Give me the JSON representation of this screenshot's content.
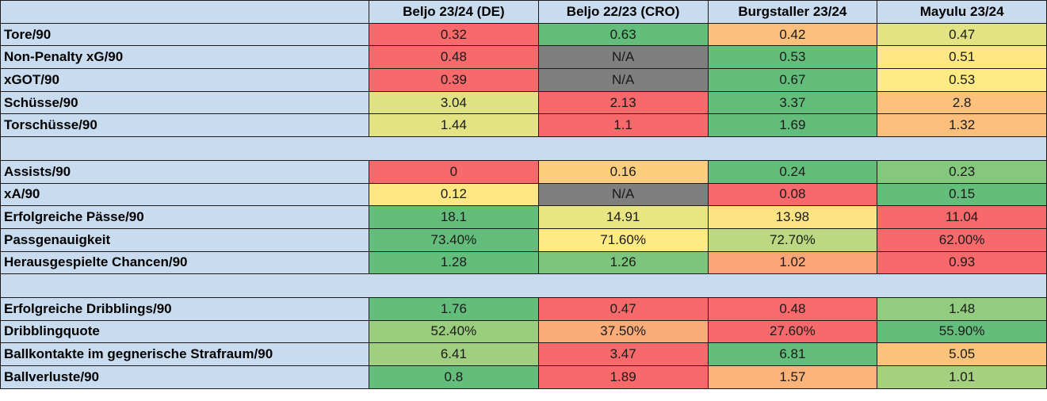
{
  "colors": {
    "header_bg": "#c9dcef",
    "red": "#f8696b",
    "orange": "#fbaa77",
    "yellow": "#ffeb84",
    "yellow_green": "#dfe283",
    "light_green": "#a2d07f",
    "green": "#63be7b",
    "gray": "#7f7f7f"
  },
  "table": {
    "columns": [
      "Beljo 23/24 (DE)",
      "Beljo 22/23 (CRO)",
      "Burgstaller 23/24",
      "Mayulu 23/24"
    ],
    "rows": [
      {
        "label": "Tore/90",
        "cells": [
          {
            "v": "0.32",
            "c": "#f8696b"
          },
          {
            "v": "0.63",
            "c": "#63be7b"
          },
          {
            "v": "0.42",
            "c": "#fbbf7c"
          },
          {
            "v": "0.47",
            "c": "#e2e383"
          }
        ]
      },
      {
        "label": "Non-Penalty xG/90",
        "cells": [
          {
            "v": "0.48",
            "c": "#f8696b"
          },
          {
            "v": "N/A",
            "c": "#7f7f7f"
          },
          {
            "v": "0.53",
            "c": "#63be7b"
          },
          {
            "v": "0.51",
            "c": "#ffe884"
          }
        ]
      },
      {
        "label": "xGOT/90",
        "cells": [
          {
            "v": "0.39",
            "c": "#f8696b"
          },
          {
            "v": "N/A",
            "c": "#7f7f7f"
          },
          {
            "v": "0.67",
            "c": "#63be7b"
          },
          {
            "v": "0.53",
            "c": "#ffeb84"
          }
        ]
      },
      {
        "label": "Schüsse/90",
        "cells": [
          {
            "v": "3.04",
            "c": "#dfe283"
          },
          {
            "v": "2.13",
            "c": "#f8696b"
          },
          {
            "v": "3.37",
            "c": "#63be7b"
          },
          {
            "v": "2.8",
            "c": "#fcc27c"
          }
        ]
      },
      {
        "label": "Torschüsse/90",
        "cells": [
          {
            "v": "1.44",
            "c": "#e3e383"
          },
          {
            "v": "1.1",
            "c": "#f8696b"
          },
          {
            "v": "1.69",
            "c": "#63be7b"
          },
          {
            "v": "1.32",
            "c": "#fcbf7b"
          }
        ]
      },
      {
        "spacer": true
      },
      {
        "label": "Assists/90",
        "cells": [
          {
            "v": "0",
            "c": "#f8696b"
          },
          {
            "v": "0.16",
            "c": "#fdcd7e"
          },
          {
            "v": "0.24",
            "c": "#63be7b"
          },
          {
            "v": "0.23",
            "c": "#84c77d"
          }
        ]
      },
      {
        "label": "xA/90",
        "cells": [
          {
            "v": "0.12",
            "c": "#ffe884"
          },
          {
            "v": "N/A",
            "c": "#7f7f7f"
          },
          {
            "v": "0.08",
            "c": "#f8696b"
          },
          {
            "v": "0.15",
            "c": "#63be7b"
          }
        ]
      },
      {
        "label": "Erfolgreiche Pässe/90",
        "cells": [
          {
            "v": "18.1",
            "c": "#63be7b"
          },
          {
            "v": "14.91",
            "c": "#eae583"
          },
          {
            "v": "13.98",
            "c": "#fde483"
          },
          {
            "v": "11.04",
            "c": "#f8696b"
          }
        ]
      },
      {
        "label": "Passgenauigkeit",
        "cells": [
          {
            "v": "73.40%",
            "c": "#63be7b"
          },
          {
            "v": "71.60%",
            "c": "#ffea84"
          },
          {
            "v": "72.70%",
            "c": "#bcd880"
          },
          {
            "v": "62.00%",
            "c": "#f8696b"
          }
        ]
      },
      {
        "label": "Herausgespielte Chancen/90",
        "cells": [
          {
            "v": "1.28",
            "c": "#63be7b"
          },
          {
            "v": "1.26",
            "c": "#7dc47d"
          },
          {
            "v": "1.02",
            "c": "#fba475"
          },
          {
            "v": "0.93",
            "c": "#f8696b"
          }
        ]
      },
      {
        "spacer": true
      },
      {
        "label": "Erfolgreiche Dribblings/90",
        "cells": [
          {
            "v": "1.76",
            "c": "#63be7b"
          },
          {
            "v": "0.47",
            "c": "#f8696b"
          },
          {
            "v": "0.48",
            "c": "#f86a6b"
          },
          {
            "v": "1.48",
            "c": "#92cc7e"
          }
        ]
      },
      {
        "label": "Dribblingquote",
        "cells": [
          {
            "v": "52.40%",
            "c": "#9acd7e"
          },
          {
            "v": "37.50%",
            "c": "#fbac77"
          },
          {
            "v": "27.60%",
            "c": "#f8696b"
          },
          {
            "v": "55.90%",
            "c": "#63be7b"
          }
        ]
      },
      {
        "label": "Ballkontakte im gegnerische Strafraum/90",
        "cells": [
          {
            "v": "6.41",
            "c": "#9fcf7f"
          },
          {
            "v": "3.47",
            "c": "#f8696b"
          },
          {
            "v": "6.81",
            "c": "#63be7b"
          },
          {
            "v": "5.05",
            "c": "#fcc37c"
          }
        ]
      },
      {
        "label": "Ballverluste/90",
        "cells": [
          {
            "v": "0.8",
            "c": "#63be7b"
          },
          {
            "v": "1.89",
            "c": "#f8696b"
          },
          {
            "v": "1.57",
            "c": "#fbb379"
          },
          {
            "v": "1.01",
            "c": "#a4d07f"
          }
        ]
      }
    ]
  }
}
